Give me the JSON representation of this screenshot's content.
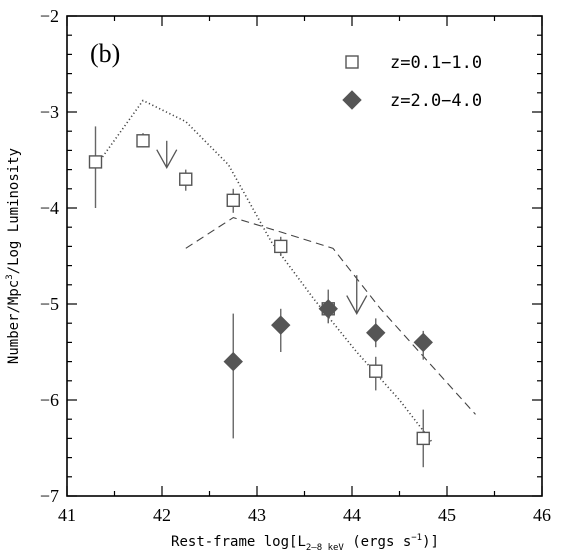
{
  "chart_data": {
    "type": "scatter",
    "panel_label": "(b)",
    "xlabel_prefix": "Rest-frame log[L",
    "xlabel_sub": "2–8 keV",
    "xlabel_suffix": " (ergs s",
    "xlabel_sup": "−1",
    "xlabel_close": ")]",
    "ylabel_main": "Number/Mpc",
    "ylabel_sup": "3",
    "ylabel_rest": "/Log Luminosity",
    "xlim": [
      41,
      46
    ],
    "ylim": [
      -7,
      -2
    ],
    "xticks": [
      41,
      42,
      43,
      44,
      45,
      46
    ],
    "yticks": [
      -7,
      -6,
      -5,
      -4,
      -3,
      -2
    ],
    "xtick_labels": [
      "41",
      "42",
      "43",
      "44",
      "45",
      "46"
    ],
    "ytick_labels": [
      "−7",
      "−6",
      "−5",
      "−4",
      "−3",
      "−2"
    ],
    "legend_position": "top-right",
    "series": [
      {
        "name": "z=0.1−1.0",
        "marker": "open-square",
        "color": "#555555",
        "points": [
          {
            "x": 41.3,
            "y": -3.52,
            "ylo": -4.0,
            "yhi": -3.15
          },
          {
            "x": 41.8,
            "y": -3.3,
            "ylo": -3.37,
            "yhi": -3.22
          },
          {
            "x": 42.25,
            "y": -3.7,
            "ylo": -3.82,
            "yhi": -3.6
          },
          {
            "x": 42.75,
            "y": -3.92,
            "ylo": -4.05,
            "yhi": -3.8
          },
          {
            "x": 43.25,
            "y": -4.4,
            "ylo": -4.5,
            "yhi": -4.3
          },
          {
            "x": 43.75,
            "y": -5.05,
            "ylo": -5.2,
            "yhi": -4.95
          },
          {
            "x": 44.25,
            "y": -5.7,
            "ylo": -5.9,
            "yhi": -5.55
          },
          {
            "x": 44.75,
            "y": -6.4,
            "ylo": -6.7,
            "yhi": -6.1
          }
        ],
        "upper_limits": [
          {
            "x": 42.05,
            "y": -3.3,
            "arrow_tip": -3.58
          }
        ]
      },
      {
        "name": "z=2.0−4.0",
        "marker": "filled-diamond",
        "color": "#555555",
        "points": [
          {
            "x": 42.75,
            "y": -5.6,
            "ylo": -6.4,
            "yhi": -5.1
          },
          {
            "x": 43.25,
            "y": -5.22,
            "ylo": -5.5,
            "yhi": -5.05
          },
          {
            "x": 43.75,
            "y": -5.05,
            "ylo": -5.2,
            "yhi": -4.85
          },
          {
            "x": 44.25,
            "y": -5.3,
            "ylo": -5.45,
            "yhi": -5.15
          },
          {
            "x": 44.75,
            "y": -5.4,
            "ylo": -5.58,
            "yhi": -5.28
          }
        ],
        "upper_limits": [
          {
            "x": 44.05,
            "y": -4.7,
            "arrow_tip": -5.1
          }
        ]
      }
    ],
    "model_curves": [
      {
        "style": "dotted",
        "x": [
          41.35,
          41.8,
          42.25,
          42.7,
          43.15,
          43.6,
          44.05,
          44.5,
          44.85
        ],
        "y": [
          -3.5,
          -2.88,
          -3.1,
          -3.55,
          -4.35,
          -4.95,
          -5.5,
          -6.0,
          -6.45
        ]
      },
      {
        "style": "dashed",
        "x": [
          42.25,
          42.75,
          43.25,
          43.8,
          44.3,
          44.8,
          45.3
        ],
        "y": [
          -4.42,
          -4.1,
          -4.25,
          -4.42,
          -5.05,
          -5.6,
          -6.15
        ]
      }
    ]
  }
}
